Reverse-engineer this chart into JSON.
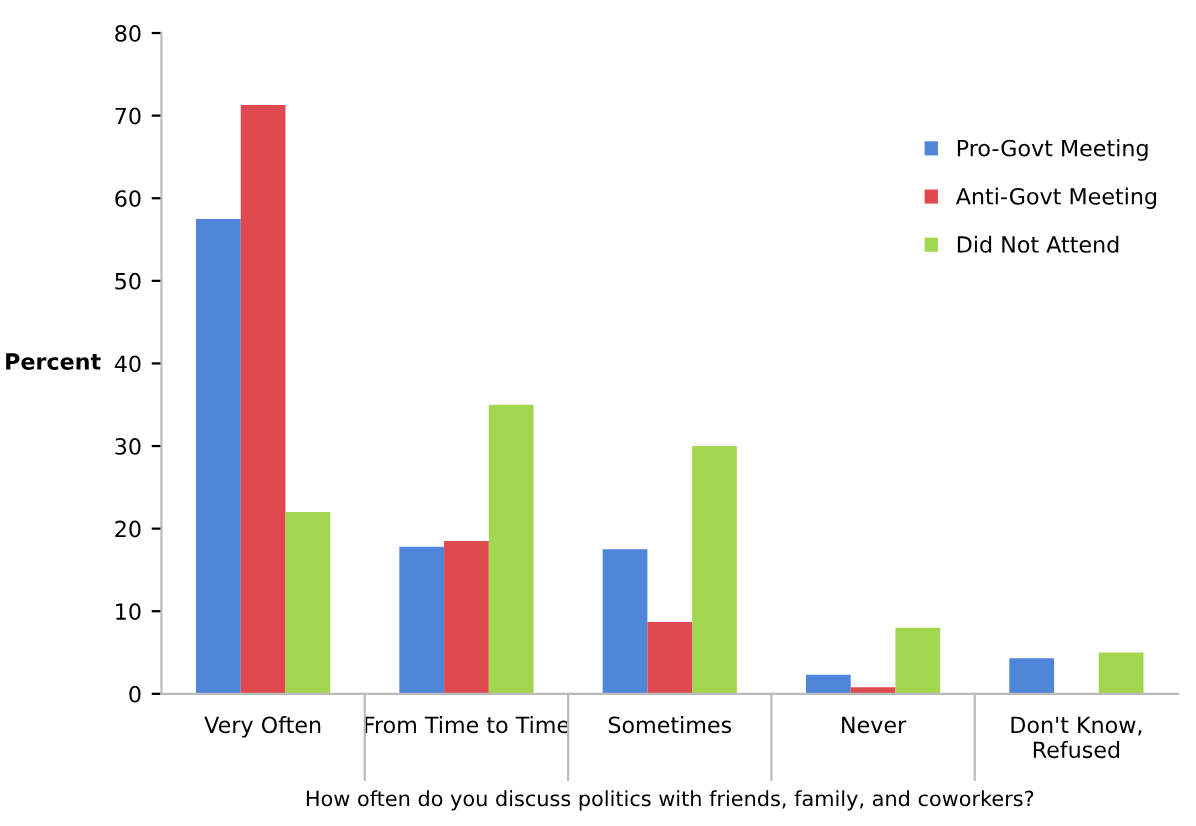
{
  "chart_data": {
    "type": "bar",
    "ylabel": "Percent",
    "xlabel": "How often do you discuss politics with friends, family, and coworkers?",
    "categories": [
      "Very Often",
      "From Time to Time",
      "Sometimes",
      "Never",
      "Don't Know,\nRefused"
    ],
    "series": [
      {
        "name": "Pro-Govt Meeting",
        "color": "#4f86d9",
        "values": [
          57.5,
          17.8,
          17.5,
          2.3,
          4.3
        ]
      },
      {
        "name": "Anti-Govt Meeting",
        "color": "#e0494f",
        "values": [
          71.3,
          18.5,
          8.7,
          0.8,
          0
        ]
      },
      {
        "name": "Did Not Attend",
        "color": "#a3d64f",
        "values": [
          22,
          35,
          30,
          8,
          5
        ]
      }
    ],
    "ylim": [
      0,
      80
    ],
    "yticks": [
      0,
      10,
      20,
      30,
      40,
      50,
      60,
      70,
      80
    ],
    "grid": false,
    "legend": "right"
  }
}
